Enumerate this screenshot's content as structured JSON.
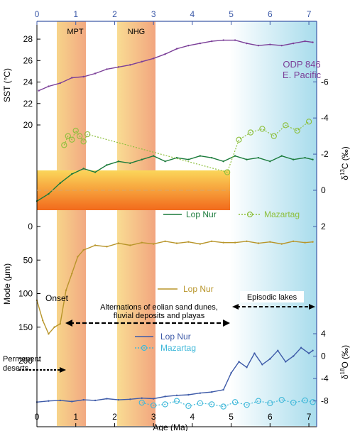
{
  "chart_data": [
    {
      "panel": "SST",
      "type": "line",
      "ylabel": "SST (°C)",
      "yticks": [
        20,
        22,
        24,
        26,
        28
      ],
      "ylim": [
        20,
        28.8
      ],
      "series": [
        {
          "name": "ODP 846 E. Pacific",
          "color": "#7b3f98",
          "x": [
            0.05,
            0.3,
            0.6,
            0.9,
            1.2,
            1.5,
            1.8,
            2.1,
            2.4,
            2.7,
            3.0,
            3.3,
            3.6,
            3.9,
            4.2,
            4.5,
            4.8,
            5.1,
            5.4,
            5.7,
            6.0,
            6.3,
            6.6,
            6.9,
            7.1
          ],
          "y": [
            23.2,
            23.6,
            23.9,
            24.4,
            24.5,
            24.8,
            25.2,
            25.4,
            25.6,
            25.9,
            26.2,
            26.6,
            27.1,
            27.4,
            27.6,
            27.8,
            27.9,
            27.9,
            27.6,
            27.4,
            27.5,
            27.4,
            27.6,
            27.8,
            27.7
          ]
        }
      ]
    },
    {
      "panel": "d13C",
      "type": "line",
      "ylabel": "δ13C (‰)",
      "yticks": [
        -6,
        -4,
        -2,
        0
      ],
      "series": [
        {
          "name": "Lop Nur",
          "color": "#1a7a3a",
          "x": [
            0,
            0.3,
            0.6,
            0.9,
            1.2,
            1.5,
            1.8,
            2.1,
            2.4,
            2.7,
            3.0,
            3.3,
            3.6,
            3.9,
            4.2,
            4.5,
            4.8,
            5.1,
            5.4,
            5.7,
            6.0,
            6.3,
            6.6,
            6.9,
            7.1
          ],
          "y": [
            0.6,
            0.2,
            -0.4,
            -0.9,
            -1.2,
            -1.0,
            -1.4,
            -1.6,
            -1.5,
            -1.7,
            -1.9,
            -1.6,
            -1.8,
            -1.7,
            -1.9,
            -1.8,
            -1.6,
            -1.9,
            -1.7,
            -1.8,
            -1.6,
            -1.9,
            -1.7,
            -1.8,
            -1.7
          ]
        },
        {
          "name": "Mazartag",
          "color": "#8dbf3c",
          "x": [
            0.7,
            0.8,
            0.9,
            1.0,
            1.1,
            1.2,
            1.3,
            4.9,
            5.2,
            5.5,
            5.8,
            6.1,
            6.4,
            6.7,
            7.0
          ],
          "y": [
            -2.5,
            -3.0,
            -2.8,
            -3.3,
            -3.0,
            -2.7,
            -3.1,
            -1.0,
            -2.8,
            -3.2,
            -3.4,
            -3.0,
            -3.6,
            -3.3,
            -3.8
          ]
        }
      ]
    },
    {
      "panel": "Mode",
      "type": "line",
      "ylabel": "Mode (μm)",
      "yticks": [
        0,
        50,
        100,
        150,
        200
      ],
      "ylim": [
        0,
        200
      ],
      "annotations": [
        "Onset"
      ],
      "series": [
        {
          "name": "Lop Nur",
          "color": "#b8952a",
          "x": [
            0,
            0.15,
            0.3,
            0.45,
            0.6,
            0.75,
            0.9,
            1.05,
            1.2,
            1.5,
            1.8,
            2.1,
            2.4,
            2.7,
            3.0,
            3.3,
            3.6,
            3.9,
            4.2,
            4.5,
            4.8,
            5.1,
            5.4,
            5.7,
            6.0,
            6.3,
            6.6,
            6.9,
            7.1
          ],
          "y": [
            110,
            140,
            160,
            150,
            145,
            95,
            70,
            45,
            35,
            28,
            30,
            25,
            28,
            24,
            26,
            22,
            25,
            23,
            26,
            22,
            24,
            24,
            22,
            25,
            23,
            26,
            22,
            24,
            23
          ]
        }
      ]
    },
    {
      "panel": "d18O",
      "type": "line",
      "ylabel": "δ18O (‰)",
      "yticks": [
        4,
        0,
        -4,
        -8
      ],
      "xlabel": "Age (Ma)",
      "xticks": [
        0,
        1,
        2,
        3,
        4,
        5,
        6,
        7
      ],
      "xlim": [
        0,
        7.2
      ],
      "series": [
        {
          "name": "Lop Nur",
          "color": "#3d5aa8",
          "x": [
            0,
            0.3,
            0.6,
            0.9,
            1.2,
            1.5,
            1.8,
            2.1,
            2.4,
            2.7,
            3.0,
            3.3,
            3.6,
            3.9,
            4.2,
            4.5,
            4.8,
            5.0,
            5.2,
            5.4,
            5.6,
            5.8,
            6.0,
            6.2,
            6.4,
            6.6,
            6.8,
            7.0,
            7.1
          ],
          "y": [
            -8.2,
            -8.0,
            -7.9,
            -8.1,
            -7.8,
            -7.9,
            -7.6,
            -7.8,
            -7.7,
            -7.5,
            -7.6,
            -7.2,
            -7.0,
            -6.9,
            -6.6,
            -6.4,
            -6.0,
            -3.0,
            -1.0,
            -2.0,
            0.5,
            -1.5,
            -0.5,
            1.0,
            -1.0,
            0.0,
            1.5,
            0.5,
            1.0
          ]
        },
        {
          "name": "Mazartag",
          "color": "#3fb8d9",
          "x": [
            2.7,
            3.0,
            3.3,
            3.6,
            3.9,
            4.2,
            4.5,
            4.8,
            5.1,
            5.4,
            5.7,
            6.0,
            6.3,
            6.6,
            6.9,
            7.1
          ],
          "y": [
            -8.3,
            -8.8,
            -8.6,
            -8.0,
            -8.9,
            -8.4,
            -8.6,
            -9.0,
            -8.2,
            -8.7,
            -8.0,
            -8.4,
            -7.8,
            -8.3,
            -7.9,
            -8.2
          ]
        }
      ]
    }
  ],
  "axes": {
    "top_ticks": [
      0,
      1,
      2,
      3,
      4,
      5,
      6,
      7
    ],
    "bottom_ticks": [
      0,
      1,
      2,
      3,
      4,
      5,
      6,
      7
    ],
    "xlabel": "Age (Ma)",
    "sst_label": "SST (°C)",
    "sst_ticks": [
      20,
      22,
      24,
      26,
      28
    ],
    "c13_label_main": "δ",
    "c13_label_sup": "13",
    "c13_label_end": "C (‰)",
    "c13_ticks": [
      -6,
      -4,
      -2,
      0
    ],
    "mode_label": "Mode (μm)",
    "mode_ticks": [
      0,
      50,
      100,
      150,
      200
    ],
    "o18_label_main": "δ",
    "o18_label_sup": "18",
    "o18_label_end": "O (‰)",
    "o18_ticks": [
      4,
      0,
      -4,
      -8
    ],
    "c13_extra_tick": 2
  },
  "bands": {
    "mpt": "MPT",
    "nhg": "NHG"
  },
  "labels": {
    "odp_line1": "ODP 846",
    "odp_line2": "E. Pacific",
    "legend_c13_lop": "Lop Nur",
    "legend_c13_maz": "Mazartag",
    "legend_mode_lop": "Lop Nur",
    "legend_o18_lop": "Lop Nur",
    "legend_o18_maz": "Mazartag",
    "onset": "Onset",
    "alternations_1": "Alternations of eolian sand dunes,",
    "alternations_2": "fluvial deposits and playas",
    "episodic": "Episodic lakes",
    "permanent_1": "Permanent",
    "permanent_2": "deserts"
  },
  "colors": {
    "sst": "#7b3f98",
    "lop_c13": "#1a7a3a",
    "maz_c13": "#8dbf3c",
    "mode": "#b8952a",
    "lop_o18": "#3d5aa8",
    "maz_o18": "#3fb8d9",
    "right_axis": "#3d5aa8"
  }
}
